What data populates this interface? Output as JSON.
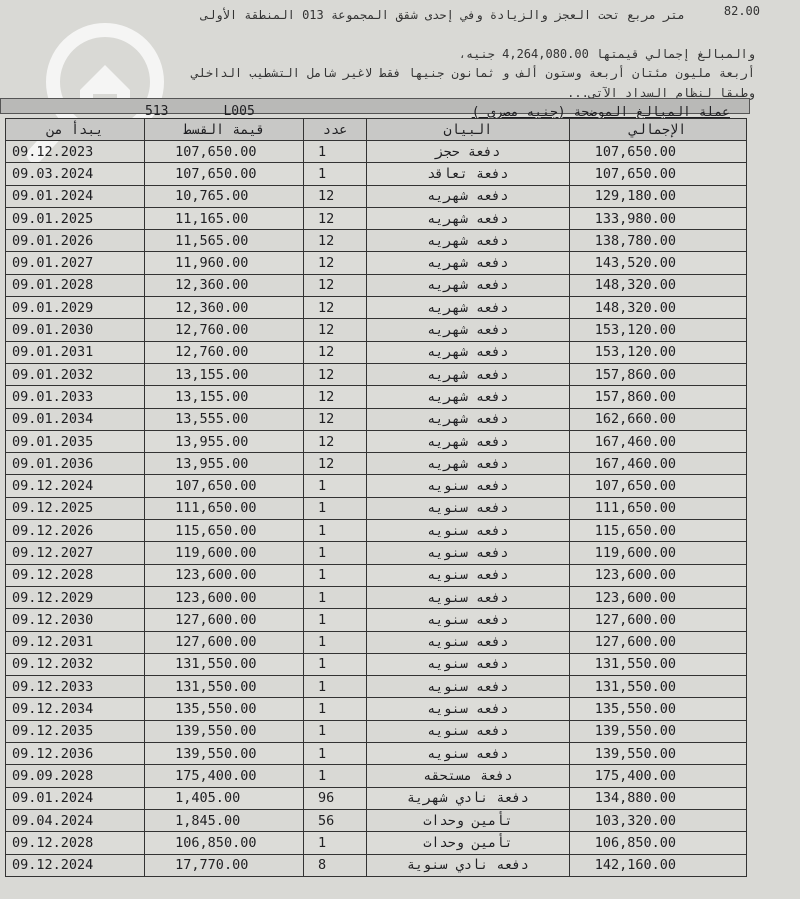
{
  "header": {
    "area": "82.00",
    "line1": "متر مربع تحت العجز والزيادة وفي إحدى شقق المجموعة  013  المنطقة الأولى",
    "line2": "والمبالغ إجمالي قيمتها   4,264,080.00  جنيه،",
    "line3": "أربعة مليون مئتان أربعة وستون ألف و ثمانون   جنيها فقط لاغير شامل التشطيب الداخلي",
    "line4": "وطبقا لنظام السداد الآتي...",
    "code1": "513",
    "code2": "L005",
    "currency": "عملة المبالغ الموضحة (جنيه مصري )"
  },
  "table": {
    "columns": [
      "يبدأ من",
      "قيمة القسط",
      "عدد",
      "البيان",
      "الإجمالي"
    ],
    "rows": [
      [
        "09.12.2023",
        "107,650.00",
        "1",
        "دفعة حجز",
        "107,650.00"
      ],
      [
        "09.03.2024",
        "107,650.00",
        "1",
        "دفعة تعاقد",
        "107,650.00"
      ],
      [
        "09.01.2024",
        "10,765.00",
        "12",
        "دفعه شهريه",
        "129,180.00"
      ],
      [
        "09.01.2025",
        "11,165.00",
        "12",
        "دفعه شهريه",
        "133,980.00"
      ],
      [
        "09.01.2026",
        "11,565.00",
        "12",
        "دفعه شهريه",
        "138,780.00"
      ],
      [
        "09.01.2027",
        "11,960.00",
        "12",
        "دفعه شهريه",
        "143,520.00"
      ],
      [
        "09.01.2028",
        "12,360.00",
        "12",
        "دفعه شهريه",
        "148,320.00"
      ],
      [
        "09.01.2029",
        "12,360.00",
        "12",
        "دفعه شهريه",
        "148,320.00"
      ],
      [
        "09.01.2030",
        "12,760.00",
        "12",
        "دفعه شهريه",
        "153,120.00"
      ],
      [
        "09.01.2031",
        "12,760.00",
        "12",
        "دفعه شهريه",
        "153,120.00"
      ],
      [
        "09.01.2032",
        "13,155.00",
        "12",
        "دفعه شهريه",
        "157,860.00"
      ],
      [
        "09.01.2033",
        "13,155.00",
        "12",
        "دفعه شهريه",
        "157,860.00"
      ],
      [
        "09.01.2034",
        "13,555.00",
        "12",
        "دفعه شهريه",
        "162,660.00"
      ],
      [
        "09.01.2035",
        "13,955.00",
        "12",
        "دفعه شهريه",
        "167,460.00"
      ],
      [
        "09.01.2036",
        "13,955.00",
        "12",
        "دفعه شهريه",
        "167,460.00"
      ],
      [
        "09.12.2024",
        "107,650.00",
        "1",
        "دفعه سنويه",
        "107,650.00"
      ],
      [
        "09.12.2025",
        "111,650.00",
        "1",
        "دفعه سنويه",
        "111,650.00"
      ],
      [
        "09.12.2026",
        "115,650.00",
        "1",
        "دفعه سنويه",
        "115,650.00"
      ],
      [
        "09.12.2027",
        "119,600.00",
        "1",
        "دفعه سنويه",
        "119,600.00"
      ],
      [
        "09.12.2028",
        "123,600.00",
        "1",
        "دفعه سنويه",
        "123,600.00"
      ],
      [
        "09.12.2029",
        "123,600.00",
        "1",
        "دفعه سنويه",
        "123,600.00"
      ],
      [
        "09.12.2030",
        "127,600.00",
        "1",
        "دفعه سنويه",
        "127,600.00"
      ],
      [
        "09.12.2031",
        "127,600.00",
        "1",
        "دفعه سنويه",
        "127,600.00"
      ],
      [
        "09.12.2032",
        "131,550.00",
        "1",
        "دفعه سنويه",
        "131,550.00"
      ],
      [
        "09.12.2033",
        "131,550.00",
        "1",
        "دفعه سنويه",
        "131,550.00"
      ],
      [
        "09.12.2034",
        "135,550.00",
        "1",
        "دفعه سنويه",
        "135,550.00"
      ],
      [
        "09.12.2035",
        "139,550.00",
        "1",
        "دفعه سنويه",
        "139,550.00"
      ],
      [
        "09.12.2036",
        "139,550.00",
        "1",
        "دفعه سنويه",
        "139,550.00"
      ],
      [
        "09.09.2028",
        "175,400.00",
        "1",
        "دفعة مستحقه",
        "175,400.00"
      ],
      [
        "09.01.2024",
        "1,405.00",
        "96",
        "دفعة نادي شهرية",
        "134,880.00"
      ],
      [
        "09.04.2024",
        "1,845.00",
        "56",
        "تأمين وحدات",
        "103,320.00"
      ],
      [
        "09.12.2028",
        "106,850.00",
        "1",
        "تأمين وحدات",
        "106,850.00"
      ],
      [
        "09.12.2024",
        "17,770.00",
        "8",
        "دفعه نادي سنوية",
        "142,160.00"
      ]
    ]
  }
}
